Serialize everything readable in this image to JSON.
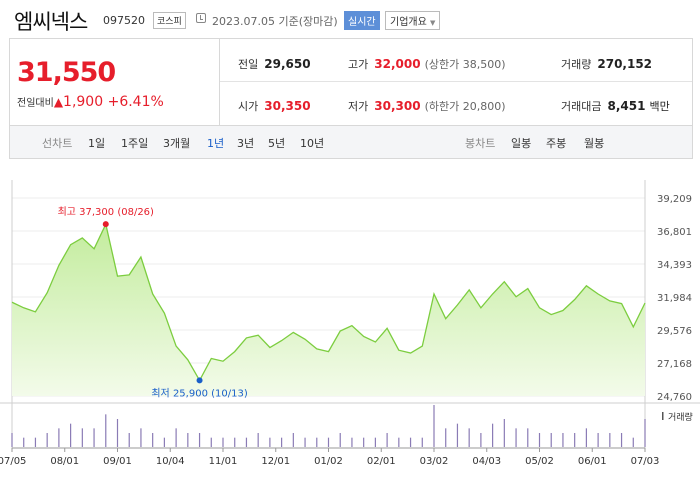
{
  "header": {
    "name": "엠씨넥스",
    "code": "097520",
    "market": "코스피",
    "datetime": "2023.07.05  기준(장마감)",
    "realtime": "실시간",
    "company": "기업개요"
  },
  "quote": {
    "price": "31,550",
    "change_label": "전일대비",
    "change_tri": "▲",
    "change": "1,900",
    "change_pct": "+6.41%",
    "prev_label": "전일",
    "prev": "29,650",
    "high_label": "고가",
    "high": "32,000",
    "upper_limit": "(상한가 38,500)",
    "volume_label": "거래량",
    "volume": "270,152",
    "open_label": "시가",
    "open": "30,350",
    "low_label": "저가",
    "low": "30,300",
    "lower_limit": "(하한가 20,800)",
    "amount_label": "거래대금",
    "amount": "8,451",
    "amount_unit": "백만"
  },
  "tabs": {
    "line_label": "선차트",
    "items": [
      "1일",
      "1주일",
      "3개월",
      "1년",
      "3년",
      "5년",
      "10년"
    ],
    "candle_label": "봉차트",
    "candle_items": [
      "일봉",
      "주봉",
      "월봉"
    ]
  },
  "colors": {
    "up": "#e61e2b",
    "down": "#1a5fc9",
    "line": "#7ccd3f",
    "fill_top": "#c3ec9d",
    "fill_bottom": "#f3fbea"
  },
  "chart_data": {
    "type": "area",
    "ylim": [
      24760,
      39209
    ],
    "y_ticks": [
      "39,209",
      "36,801",
      "34,393",
      "31,984",
      "29,576",
      "27,168",
      "24,760"
    ],
    "x_ticks": [
      "07/05",
      "08/01",
      "09/01",
      "10/04",
      "11/01",
      "12/01",
      "01/02",
      "02/01",
      "03/02",
      "04/03",
      "05/02",
      "06/01",
      "07/03"
    ],
    "x": [
      "07/05",
      "07/11",
      "07/17",
      "07/24",
      "08/01",
      "08/07",
      "08/14",
      "08/21",
      "08/26",
      "09/01",
      "09/07",
      "09/14",
      "09/21",
      "09/27",
      "10/04",
      "10/10",
      "10/13",
      "10/19",
      "10/26",
      "11/01",
      "11/08",
      "11/15",
      "11/22",
      "12/01",
      "12/07",
      "12/14",
      "12/21",
      "12/28",
      "01/02",
      "01/09",
      "01/16",
      "01/23",
      "02/01",
      "02/07",
      "02/14",
      "02/21",
      "03/02",
      "03/08",
      "03/15",
      "03/22",
      "03/29",
      "04/03",
      "04/10",
      "04/17",
      "04/24",
      "05/02",
      "05/09",
      "05/16",
      "05/23",
      "06/01",
      "06/08",
      "06/15",
      "06/22",
      "07/03",
      "07/05"
    ],
    "values": [
      31600,
      31200,
      30900,
      32300,
      34300,
      35800,
      36300,
      35500,
      37300,
      33500,
      33600,
      34900,
      32200,
      30800,
      28400,
      27400,
      25900,
      27500,
      27300,
      28000,
      29000,
      29200,
      28300,
      28800,
      29400,
      28900,
      28200,
      28000,
      29500,
      29900,
      29100,
      28700,
      29700,
      28100,
      27900,
      28400,
      32200,
      30400,
      31400,
      32500,
      31200,
      32200,
      33100,
      32000,
      32600,
      31200,
      30700,
      31000,
      31800,
      32800,
      32200,
      31700,
      31500,
      29800,
      31550
    ],
    "max": {
      "label": "최고",
      "value": "37,300",
      "date": "(08/26)"
    },
    "min": {
      "label": "최저",
      "value": "25,900",
      "date": "(10/13)"
    },
    "volume_label": "거래량",
    "volume": [
      3,
      2,
      2,
      3,
      4,
      5,
      4,
      4,
      7,
      6,
      3,
      4,
      3,
      2,
      4,
      3,
      3,
      2,
      2,
      2,
      2,
      3,
      2,
      2,
      3,
      2,
      2,
      2,
      3,
      2,
      2,
      2,
      3,
      2,
      2,
      2,
      9,
      4,
      5,
      4,
      3,
      5,
      6,
      4,
      4,
      3,
      3,
      3,
      3,
      4,
      3,
      3,
      3,
      2,
      6
    ]
  }
}
